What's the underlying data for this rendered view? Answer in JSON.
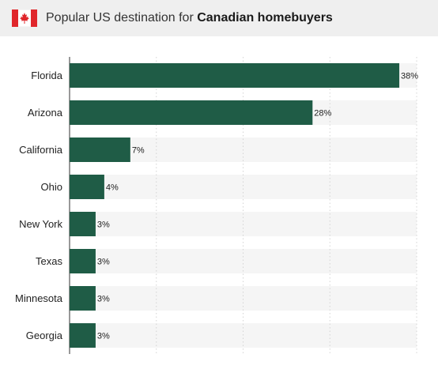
{
  "header": {
    "title_regular": "Popular US destination for ",
    "title_bold": "Canadian homebuyers",
    "flag_icon": "canada-flag-icon"
  },
  "colors": {
    "bar": "#1f5c46",
    "track": "#f5f5f5",
    "header_bg": "#efefef",
    "flag_red": "#e0262b"
  },
  "chart_data": {
    "type": "bar",
    "orientation": "horizontal",
    "title": "Popular US destination for Canadian homebuyers",
    "categories": [
      "Florida",
      "Arizona",
      "California",
      "Ohio",
      "New York",
      "Texas",
      "Minnesota",
      "Georgia"
    ],
    "values": [
      38,
      28,
      7,
      4,
      3,
      3,
      3,
      3
    ],
    "value_labels": [
      "38%",
      "28%",
      "7%",
      "4%",
      "3%",
      "3%",
      "3%",
      "3%"
    ],
    "unit": "%",
    "xlim": [
      0,
      40
    ],
    "grid": true,
    "legend": "none"
  }
}
